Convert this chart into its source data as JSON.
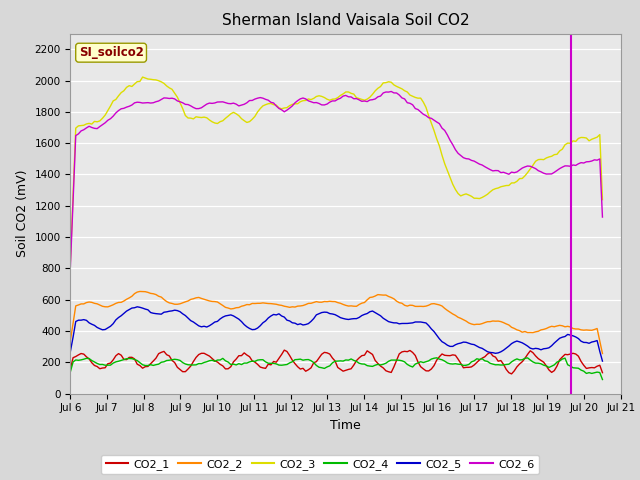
{
  "title": "Sherman Island Vaisala Soil CO2",
  "ylabel": "Soil CO2 (mV)",
  "xlabel": "Time",
  "watermark_text": "SI_soilco2",
  "xlim_days": [
    6,
    21
  ],
  "ylim": [
    0,
    2300
  ],
  "yticks": [
    0,
    200,
    400,
    600,
    800,
    1000,
    1200,
    1400,
    1600,
    1800,
    2000,
    2200
  ],
  "xtick_labels": [
    "Jul 6",
    "Jul 7",
    "Jul 8",
    "Jul 9",
    "Jul 10",
    "Jul 11",
    "Jul 12",
    "Jul 13",
    "Jul 14",
    "Jul 15",
    "Jul 16",
    "Jul 17",
    "Jul 18",
    "Jul 19",
    "Jul 20",
    "Jul 21"
  ],
  "vline_x": 19.65,
  "line_colors": {
    "CO2_1": "#cc0000",
    "CO2_2": "#ff8800",
    "CO2_3": "#dddd00",
    "CO2_4": "#00bb00",
    "CO2_5": "#0000cc",
    "CO2_6": "#cc00cc"
  },
  "fig_bg": "#d8d8d8",
  "axes_bg": "#e8e8e8",
  "grid_color": "#ffffff",
  "watermark_bg": "#ffffcc",
  "watermark_fg": "#880000",
  "title_fontsize": 11,
  "axis_fontsize": 9,
  "tick_fontsize": 7.5
}
